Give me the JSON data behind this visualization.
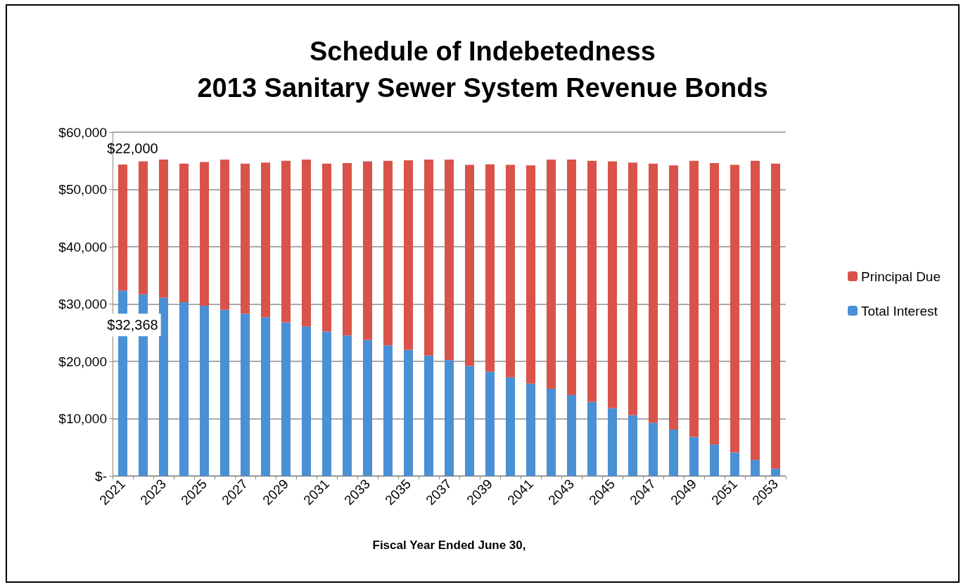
{
  "chart_data": {
    "type": "bar",
    "stacked": true,
    "title": "Schedule of Indebetedness\n2013 Sanitary Sewer System Revenue Bonds",
    "xlabel": "Fiscal Year Ended June 30,",
    "categories": [
      "2021",
      null,
      "2023",
      null,
      "2025",
      null,
      "2027",
      null,
      "2029",
      null,
      "2031",
      null,
      "2033",
      null,
      "2035",
      null,
      "2037",
      null,
      "2039",
      null,
      "2041",
      null,
      "2043",
      null,
      "2045",
      null,
      "2047",
      null,
      "2049",
      null,
      "2051",
      null,
      "2053"
    ],
    "series": [
      {
        "name": "Total Interest",
        "color": "#4a90d4",
        "values": [
          32368,
          31700,
          31100,
          30300,
          29700,
          29000,
          28300,
          27700,
          26800,
          26100,
          25200,
          24500,
          23700,
          22800,
          22000,
          21000,
          20200,
          19200,
          18200,
          17200,
          16100,
          15200,
          14100,
          12900,
          11800,
          10600,
          9300,
          8100,
          6800,
          5500,
          4100,
          2800,
          1300
        ],
        "value_labels": [
          "$32,368",
          null,
          null,
          null,
          null,
          null,
          null,
          null,
          null,
          null,
          null,
          null,
          null,
          null,
          null,
          null,
          null,
          null,
          null,
          null,
          null,
          null,
          null,
          null,
          null,
          null,
          null,
          null,
          null,
          null,
          null,
          null,
          null
        ]
      },
      {
        "name": "Principal Due",
        "color": "#d9534a",
        "values": [
          22000,
          23200,
          24100,
          24200,
          25100,
          26200,
          26200,
          27000,
          28200,
          29100,
          29300,
          30100,
          31200,
          32200,
          33100,
          34200,
          35000,
          35100,
          36200,
          37100,
          38100,
          40000,
          41100,
          42100,
          43100,
          44100,
          45200,
          46100,
          48200,
          49100,
          50200,
          52200,
          53200
        ],
        "value_labels": [
          "$22,000",
          null,
          null,
          null,
          null,
          null,
          null,
          null,
          null,
          null,
          null,
          null,
          null,
          null,
          null,
          null,
          null,
          null,
          null,
          null,
          null,
          null,
          null,
          null,
          null,
          null,
          null,
          null,
          null,
          null,
          null,
          null,
          null
        ]
      }
    ],
    "ylim": [
      0,
      60000
    ],
    "yticks": [
      {
        "value": 0,
        "label": "$-"
      },
      {
        "value": 10000,
        "label": "$10,000"
      },
      {
        "value": 20000,
        "label": "$20,000"
      },
      {
        "value": 30000,
        "label": "$30,000"
      },
      {
        "value": 40000,
        "label": "$40,000"
      },
      {
        "value": 50000,
        "label": "$50,000"
      },
      {
        "value": 60000,
        "label": "$60,000"
      }
    ],
    "grid": "y",
    "legend": "right"
  }
}
